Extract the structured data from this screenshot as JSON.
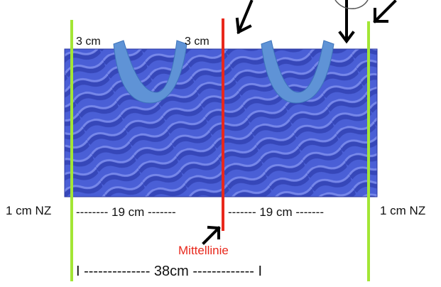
{
  "labels": {
    "left_pocket_offset": "3 cm",
    "center_pocket_offset": "3 cm",
    "left_seam_allowance": "1 cm NZ",
    "right_seam_allowance": "1 cm NZ",
    "left_half_width": "-------- 19 cm -------",
    "right_half_width": "------- 19 cm -------",
    "center_line": "Mittellinie",
    "total_width": "I --------------    38cm    ------------- I"
  },
  "colors": {
    "fabric": "#4a5fd6",
    "fabric_dark": "#2f3fae",
    "fabric_light": "#7f8ff0",
    "pocket": "#5f93d6",
    "pocket_edge": "#3e74bb",
    "seam_line": "#a3e635",
    "center_line": "#e8281c",
    "center_label": "#e8281c",
    "arrow": "#000000"
  },
  "icons": [
    "arrow-icon",
    "u-shaped-pocket-icon"
  ]
}
